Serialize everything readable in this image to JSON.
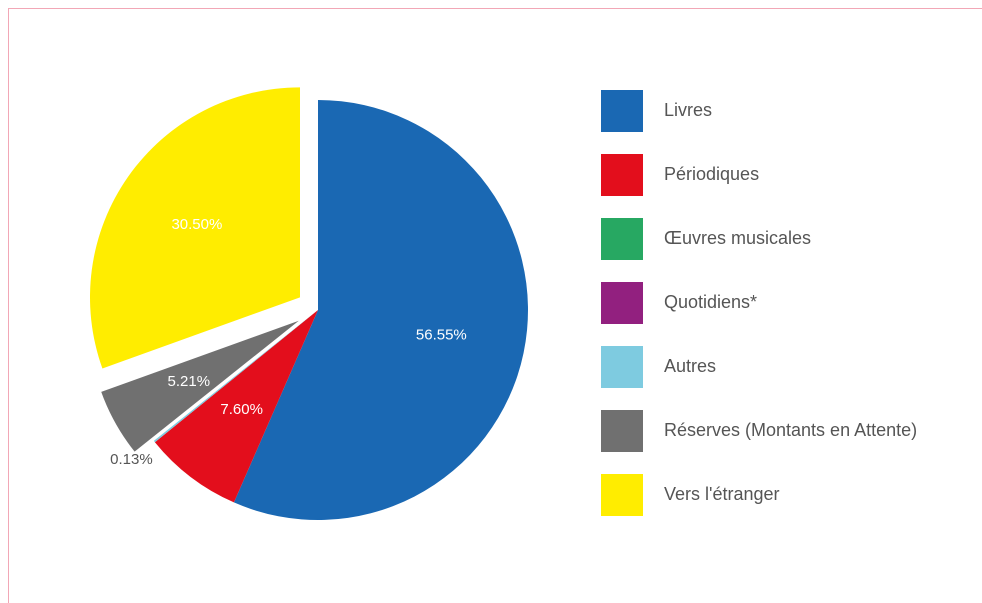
{
  "chart_data": {
    "type": "pie",
    "categories": [
      "Livres",
      "Périodiques",
      "Œuvres musicales",
      "Quotidiens*",
      "Autres",
      "Réserves (Montants en Attente)",
      "Vers l'étranger"
    ],
    "values": [
      56.55,
      7.6,
      0,
      0,
      0.13,
      5.21,
      30.5
    ],
    "value_labels": [
      "56.55%",
      "7.60%",
      null,
      null,
      "0.13%",
      "5.21%",
      "30.50%"
    ],
    "colors": [
      "#1a68b3",
      "#e30e1c",
      "#27a862",
      "#92207f",
      "#7ecbe0",
      "#707070",
      "#ffed00"
    ],
    "explode": [
      false,
      false,
      false,
      false,
      false,
      true,
      true
    ],
    "legend": "right"
  }
}
